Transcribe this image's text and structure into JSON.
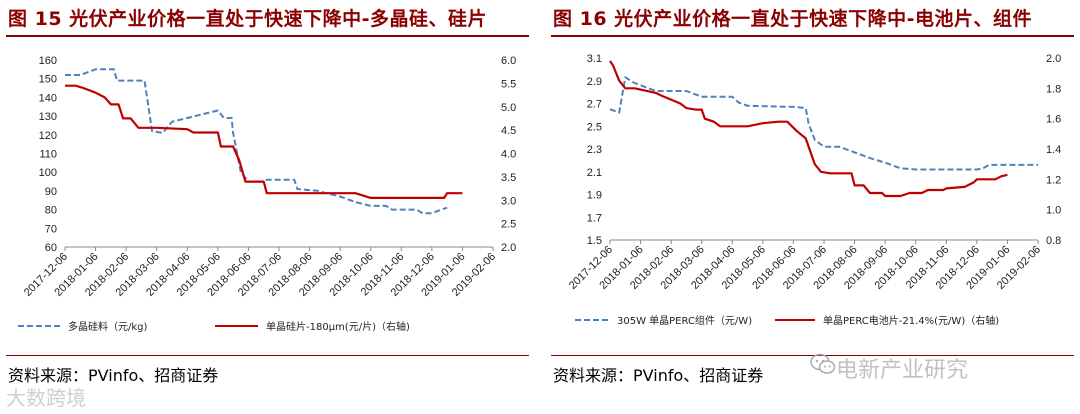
{
  "left_panel": {
    "title": "图 15  光伏产业价格一直处于快速下降中-多晶硅、硅片",
    "source": "资料来源：PVinfo、招商证券"
  },
  "right_panel": {
    "title": "图 16 光伏产业价格一直处于快速下降中-电池片、组件",
    "source": "资料来源：PVinfo、招商证券"
  },
  "watermarks": {
    "right": "电新产业研究",
    "left": "大数跨境"
  },
  "colors": {
    "title": "#8B0000",
    "series_red": "#C00000",
    "series_blue": "#4F81BD"
  },
  "chart_data": [
    {
      "type": "line",
      "title": "",
      "x": [
        "2017-12-06",
        "2018-01-06",
        "2018-02-06",
        "2018-03-06",
        "2018-04-06",
        "2018-05-06",
        "2018-06-06",
        "2018-07-06",
        "2018-08-06",
        "2018-09-06",
        "2018-10-06",
        "2018-11-06",
        "2018-12-06",
        "2019-01-06",
        "2019-02-06"
      ],
      "ylim": [
        60,
        160
      ],
      "y_ticks": [
        "60",
        "70",
        "80",
        "90",
        "100",
        "110",
        "120",
        "130",
        "140",
        "150",
        "160"
      ],
      "y2lim": [
        2.0,
        6.0
      ],
      "y2_ticks": [
        "2.0",
        "2.5",
        "3.0",
        "3.5",
        "4.0",
        "4.5",
        "5.0",
        "5.5",
        "6.0"
      ],
      "series": [
        {
          "name": "多晶硅料（元/kg)",
          "axis": "left",
          "style": "dashed",
          "color": "#4F81BD",
          "points": [
            [
              0,
              152
            ],
            [
              0.5,
              152
            ],
            [
              1,
              155
            ],
            [
              1.6,
              155
            ],
            [
              1.7,
              149
            ],
            [
              2.6,
              149
            ],
            [
              2.85,
              122
            ],
            [
              3.2,
              121
            ],
            [
              3.5,
              127
            ],
            [
              4,
              129
            ],
            [
              4.5,
              131
            ],
            [
              5,
              133
            ],
            [
              5.2,
              129
            ],
            [
              5.45,
              129
            ],
            [
              5.5,
              121
            ],
            [
              5.75,
              100
            ],
            [
              6,
              95
            ],
            [
              6.5,
              95
            ],
            [
              6.6,
              96
            ],
            [
              7.5,
              96
            ],
            [
              7.6,
              91
            ],
            [
              8.3,
              90
            ],
            [
              8.5,
              89
            ],
            [
              9,
              87
            ],
            [
              9.5,
              84
            ],
            [
              10,
              82
            ],
            [
              10.5,
              82
            ],
            [
              10.7,
              80
            ],
            [
              11.5,
              80
            ],
            [
              11.7,
              78
            ],
            [
              12,
              78
            ],
            [
              12.3,
              80
            ],
            [
              12.5,
              81
            ]
          ]
        },
        {
          "name": "单晶硅片-180μm(元/片)（右轴)",
          "axis": "right",
          "style": "solid",
          "color": "#C00000",
          "points": [
            [
              0,
              5.45
            ],
            [
              0.35,
              5.45
            ],
            [
              0.6,
              5.4
            ],
            [
              1,
              5.3
            ],
            [
              1.3,
              5.2
            ],
            [
              1.5,
              5.05
            ],
            [
              1.75,
              5.05
            ],
            [
              1.9,
              4.75
            ],
            [
              2.15,
              4.75
            ],
            [
              2.4,
              4.55
            ],
            [
              3,
              4.55
            ],
            [
              4,
              4.52
            ],
            [
              4.2,
              4.45
            ],
            [
              5,
              4.45
            ],
            [
              5.1,
              4.15
            ],
            [
              5.5,
              4.15
            ],
            [
              5.7,
              3.85
            ],
            [
              5.9,
              3.4
            ],
            [
              6.5,
              3.4
            ],
            [
              6.6,
              3.15
            ],
            [
              7,
              3.15
            ],
            [
              9.5,
              3.15
            ],
            [
              10,
              3.05
            ],
            [
              12,
              3.05
            ],
            [
              12.4,
              3.05
            ],
            [
              12.5,
              3.15
            ],
            [
              13,
              3.15
            ]
          ]
        }
      ]
    },
    {
      "type": "line",
      "title": "",
      "x": [
        "2017-12-06",
        "2018-01-06",
        "2018-02-06",
        "2018-03-06",
        "2018-04-06",
        "2018-05-06",
        "2018-06-06",
        "2018-07-06",
        "2018-08-06",
        "2018-09-06",
        "2018-10-06",
        "2018-11-06",
        "2018-12-06",
        "2019-01-06",
        "2019-02-06"
      ],
      "ylim": [
        1.5,
        3.1
      ],
      "y_ticks": [
        "1.5",
        "1.7",
        "1.9",
        "2.1",
        "2.3",
        "2.5",
        "2.7",
        "2.9",
        "3.1"
      ],
      "y2lim": [
        0.8,
        2.0
      ],
      "y2_ticks": [
        "0.8",
        "1.0",
        "1.2",
        "1.4",
        "1.6",
        "1.8",
        "2.0"
      ],
      "series": [
        {
          "name": "305W 单晶PERC组件（元/W)",
          "axis": "left",
          "style": "dashed",
          "color": "#4F81BD",
          "points": [
            [
              0,
              2.65
            ],
            [
              0.3,
              2.62
            ],
            [
              0.5,
              2.93
            ],
            [
              0.8,
              2.88
            ],
            [
              1.2,
              2.84
            ],
            [
              1.5,
              2.81
            ],
            [
              2.5,
              2.81
            ],
            [
              3,
              2.76
            ],
            [
              4,
              2.76
            ],
            [
              4.2,
              2.71
            ],
            [
              4.5,
              2.68
            ],
            [
              6,
              2.67
            ],
            [
              6.4,
              2.66
            ],
            [
              6.5,
              2.52
            ],
            [
              6.7,
              2.38
            ],
            [
              7,
              2.32
            ],
            [
              7.5,
              2.32
            ],
            [
              8,
              2.27
            ],
            [
              8.5,
              2.22
            ],
            [
              9,
              2.18
            ],
            [
              9.5,
              2.13
            ],
            [
              10,
              2.12
            ],
            [
              12,
              2.12
            ],
            [
              12.2,
              2.13
            ],
            [
              12.4,
              2.16
            ],
            [
              14,
              2.16
            ]
          ]
        },
        {
          "name": "单晶PERC电池片-21.4%(元/W)（右轴)",
          "axis": "right",
          "style": "solid",
          "color": "#C00000",
          "points": [
            [
              0,
              1.98
            ],
            [
              0.1,
              1.95
            ],
            [
              0.3,
              1.85
            ],
            [
              0.5,
              1.8
            ],
            [
              0.8,
              1.8
            ],
            [
              1.5,
              1.77
            ],
            [
              1.7,
              1.75
            ],
            [
              2.3,
              1.7
            ],
            [
              2.5,
              1.67
            ],
            [
              2.8,
              1.66
            ],
            [
              3,
              1.66
            ],
            [
              3.1,
              1.6
            ],
            [
              3.4,
              1.58
            ],
            [
              3.6,
              1.55
            ],
            [
              4.5,
              1.55
            ],
            [
              5,
              1.57
            ],
            [
              5.5,
              1.58
            ],
            [
              5.8,
              1.58
            ],
            [
              6.1,
              1.52
            ],
            [
              6.4,
              1.47
            ],
            [
              6.7,
              1.3
            ],
            [
              6.9,
              1.25
            ],
            [
              7.2,
              1.24
            ],
            [
              7.9,
              1.24
            ],
            [
              8,
              1.16
            ],
            [
              8.3,
              1.16
            ],
            [
              8.5,
              1.11
            ],
            [
              8.9,
              1.11
            ],
            [
              9,
              1.09
            ],
            [
              9.5,
              1.09
            ],
            [
              9.8,
              1.11
            ],
            [
              10.2,
              1.11
            ],
            [
              10.4,
              1.13
            ],
            [
              10.9,
              1.13
            ],
            [
              11,
              1.14
            ],
            [
              11.6,
              1.15
            ],
            [
              11.9,
              1.18
            ],
            [
              12,
              1.2
            ],
            [
              12.6,
              1.2
            ],
            [
              12.8,
              1.22
            ],
            [
              13,
              1.23
            ]
          ]
        }
      ]
    }
  ]
}
